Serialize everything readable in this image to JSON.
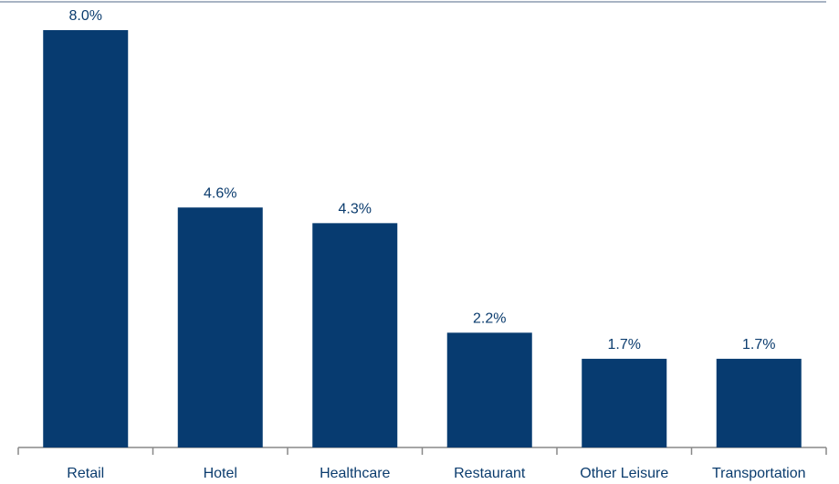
{
  "chart_data": {
    "type": "bar",
    "categories": [
      "Retail",
      "Hotel",
      "Healthcare",
      "Restaurant",
      "Other Leisure",
      "Transportation"
    ],
    "values": [
      8.0,
      4.6,
      4.3,
      2.2,
      1.7,
      1.7
    ],
    "value_labels": [
      "8.0%",
      "4.6%",
      "4.3%",
      "2.2%",
      "1.7%",
      "1.7%"
    ],
    "color": "#073b70"
  }
}
